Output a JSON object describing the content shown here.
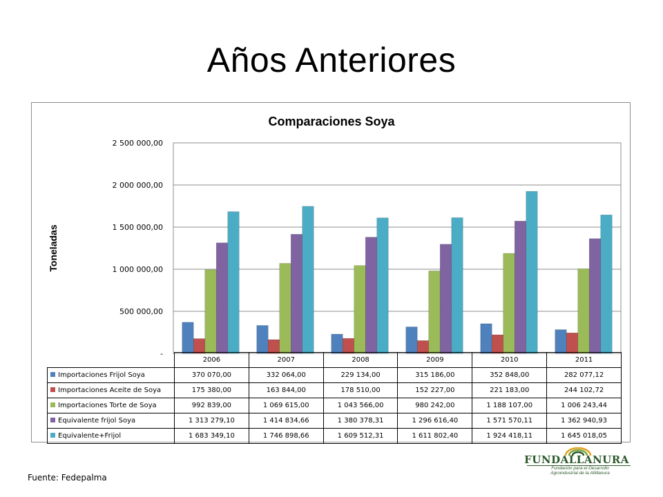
{
  "slide": {
    "title": "Años Anteriores",
    "footer": "Fuente: Fedepalma"
  },
  "logo": {
    "name": "FUNDALLANURA",
    "tagline_1": "Fundación para el Desarrollo",
    "tagline_2": "Agroindustrial de la Altillanura"
  },
  "chart_data": {
    "type": "bar",
    "title": "Comparaciones Soya",
    "ylabel": "Toneladas",
    "xlabel": "",
    "ylim": [
      0,
      2500000
    ],
    "yticks": [
      0,
      500000,
      1000000,
      1500000,
      2000000,
      2500000
    ],
    "ytick_labels": [
      "-",
      "500 000,00",
      "1 000 000,00",
      "1 500 000,00",
      "2 000 000,00",
      "2 500 000,00"
    ],
    "grid": true,
    "categories": [
      "2006",
      "2007",
      "2008",
      "2009",
      "2010",
      "2011"
    ],
    "series": [
      {
        "name": "Importaciones Frijol Soya",
        "color": "#4f81bd",
        "values": [
          370070.0,
          332064.0,
          229134.0,
          315186.0,
          352848.0,
          282077.12
        ],
        "labels": [
          "370 070,00",
          "332 064,00",
          "229 134,00",
          "315 186,00",
          "352 848,00",
          "282 077,12"
        ]
      },
      {
        "name": "Importaciones Aceite de Soya",
        "color": "#c0504d",
        "values": [
          175380.0,
          163844.0,
          178510.0,
          152227.0,
          221183.0,
          244102.72
        ],
        "labels": [
          "175 380,00",
          "163 844,00",
          "178 510,00",
          "152 227,00",
          "221 183,00",
          "244 102,72"
        ]
      },
      {
        "name": "Importaciones Torte de Soya",
        "color": "#9bbb59",
        "values": [
          992839.0,
          1069615.0,
          1043566.0,
          980242.0,
          1188107.0,
          1006243.44
        ],
        "labels": [
          "992 839,00",
          "1 069 615,00",
          "1 043 566,00",
          "980 242,00",
          "1 188 107,00",
          "1 006 243,44"
        ]
      },
      {
        "name": "Equivalente frijol Soya",
        "color": "#8064a2",
        "values": [
          1313279.1,
          1414834.66,
          1380378.31,
          1296616.4,
          1571570.11,
          1362940.93
        ],
        "labels": [
          "1 313 279,10",
          "1 414 834,66",
          "1 380 378,31",
          "1 296 616,40",
          "1 571 570,11",
          "1 362 940,93"
        ]
      },
      {
        "name": "Equivalente+Frijol",
        "color": "#4bacc6",
        "values": [
          1683349.1,
          1746898.66,
          1609512.31,
          1611802.4,
          1924418.11,
          1645018.05
        ],
        "labels": [
          "1 683 349,10",
          "1 746 898,66",
          "1 609 512,31",
          "1 611 802,40",
          "1 924 418,11",
          "1 645 018,05"
        ]
      }
    ]
  }
}
